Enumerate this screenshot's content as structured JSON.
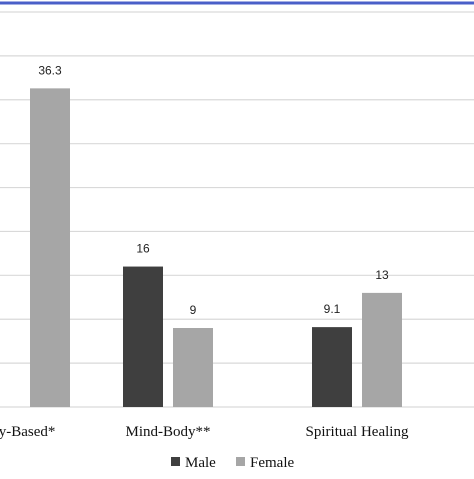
{
  "colors": {
    "male": "#3f3f3f",
    "female": "#a6a6a6",
    "grid": "#d9d9d9",
    "border": "#4a5fc8"
  },
  "chart_data": {
    "type": "bar",
    "categories": [
      "ly-Based*",
      "Mind-Body**",
      "Spiritual Healing"
    ],
    "series": [
      {
        "name": "Male",
        "values": [
          null,
          16,
          9.1
        ],
        "labels": [
          "",
          "16",
          "9.1"
        ]
      },
      {
        "name": "Female",
        "values": [
          36.3,
          9,
          13
        ],
        "labels": [
          "36.3",
          "9",
          "13"
        ]
      }
    ],
    "ylim": [
      0,
      45
    ],
    "grid": true,
    "legend_position": "bottom-center"
  }
}
